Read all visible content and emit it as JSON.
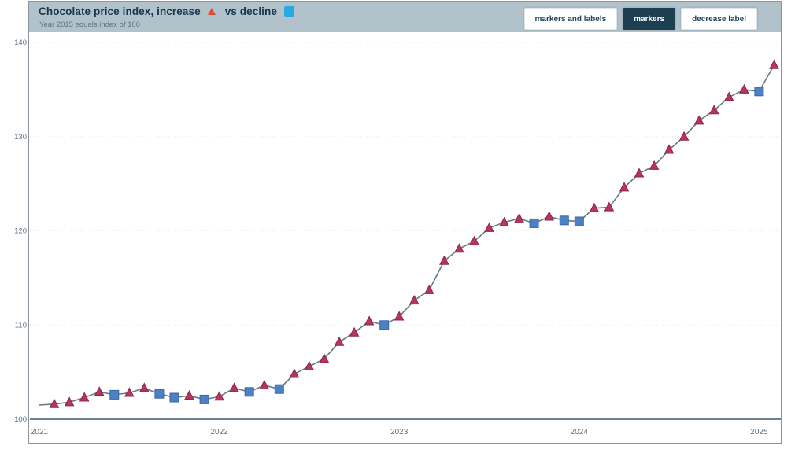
{
  "header": {
    "title_part1": "Chocolate price index, increase",
    "title_part2": "vs decline",
    "subtitle": "Year 2015 equals index of 100",
    "buttons": [
      {
        "label": "markers and labels",
        "active": false
      },
      {
        "label": "markers",
        "active": true
      },
      {
        "label": "decrease label",
        "active": false
      }
    ]
  },
  "chart_data": {
    "type": "line",
    "title": "Chocolate price index, increase vs decline",
    "subtitle": "Year 2015 equals index of 100",
    "x": [
      "2021-01",
      "2021-02",
      "2021-03",
      "2021-04",
      "2021-05",
      "2021-06",
      "2021-07",
      "2021-08",
      "2021-09",
      "2021-10",
      "2021-11",
      "2021-12",
      "2022-01",
      "2022-02",
      "2022-03",
      "2022-04",
      "2022-05",
      "2022-06",
      "2022-07",
      "2022-08",
      "2022-09",
      "2022-10",
      "2022-11",
      "2022-12",
      "2023-01",
      "2023-02",
      "2023-03",
      "2023-04",
      "2023-05",
      "2023-06",
      "2023-07",
      "2023-08",
      "2023-09",
      "2023-10",
      "2023-11",
      "2023-12",
      "2024-01",
      "2024-02",
      "2024-03",
      "2024-04",
      "2024-05",
      "2024-06",
      "2024-07",
      "2024-08",
      "2024-09",
      "2024-10",
      "2024-11",
      "2024-12",
      "2025-01",
      "2025-02"
    ],
    "values": [
      101.5,
      101.6,
      101.8,
      102.3,
      102.9,
      102.6,
      102.8,
      103.3,
      102.7,
      102.3,
      102.5,
      102.1,
      102.4,
      103.3,
      102.9,
      103.6,
      103.2,
      104.8,
      105.6,
      106.4,
      108.2,
      109.2,
      110.4,
      110.0,
      110.9,
      112.6,
      113.7,
      116.8,
      118.1,
      118.9,
      120.3,
      120.9,
      121.3,
      120.8,
      121.5,
      121.1,
      121.0,
      122.4,
      122.5,
      124.6,
      126.1,
      126.9,
      128.6,
      130.0,
      131.7,
      132.8,
      134.2,
      135.0,
      134.8,
      137.6
    ],
    "markers": [
      "none",
      "up",
      "up",
      "up",
      "up",
      "down",
      "up",
      "up",
      "down",
      "down",
      "up",
      "down",
      "up",
      "up",
      "down",
      "up",
      "down",
      "up",
      "up",
      "up",
      "up",
      "up",
      "up",
      "down",
      "up",
      "up",
      "up",
      "up",
      "up",
      "up",
      "up",
      "up",
      "up",
      "down",
      "up",
      "down",
      "down",
      "up",
      "up",
      "up",
      "up",
      "up",
      "up",
      "up",
      "up",
      "up",
      "up",
      "up",
      "down",
      "up"
    ],
    "marker_legend": {
      "up": "increase (red triangle)",
      "down": "decline (blue square)"
    },
    "xticks": [
      "2021",
      "2022",
      "2023",
      "2024",
      "2025"
    ],
    "yticks": [
      100,
      110,
      120,
      130,
      140
    ],
    "ylim": [
      100,
      140
    ],
    "xlabel": "",
    "ylabel": "",
    "grid": "horizontal-dotted",
    "legend_position": "in-title",
    "colors": {
      "line": "#64798a",
      "increase": "#b5355f",
      "increase_border": "#8f2549",
      "decline": "#4d80c4",
      "decline_border": "#3766ab",
      "legend_increase": "#e8473d",
      "legend_decline": "#27a9e1",
      "axis": "#5b6e7c",
      "axis_text": "#5f7181",
      "grid": "#e7e9ea",
      "header_bg": "#b2c2ca",
      "button_active_bg": "#1e3e51",
      "title_text": "#17364d"
    }
  }
}
